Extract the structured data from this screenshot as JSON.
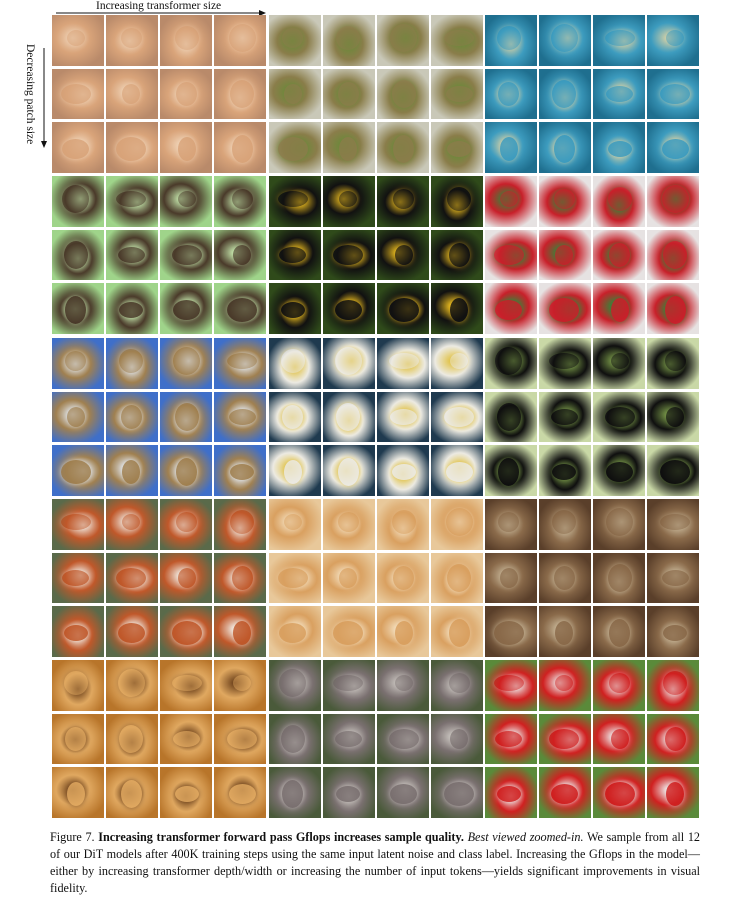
{
  "figure": {
    "top_axis_label": "Increasing transformer size",
    "side_axis_label": "Decreasing patch size",
    "caption": {
      "figure_label": "Figure 7.",
      "title": "Increasing transformer forward pass Gflops increases sample quality.",
      "emphasis": "Best viewed zoomed-in.",
      "body": "We sample from all 12 of our DiT models after 400K training steps using the same input latent noise and class label. Increasing the Gflops in the model—either by increasing transformer depth/width or increasing the number of input tokens—yields significant improvements in visual fidelity."
    },
    "panels": [
      {
        "subject": "dog",
        "colors": {
          "bg": "#b98a6a",
          "fg": "#d9a47a",
          "accent": "#f0d4b8"
        }
      },
      {
        "subject": "frog",
        "colors": {
          "bg": "#c9c8b8",
          "fg": "#8a7d4a",
          "accent": "#6b8a3a"
        }
      },
      {
        "subject": "pufferfish",
        "colors": {
          "bg": "#1f6f8f",
          "fg": "#3d9cbf",
          "accent": "#d9d2a6"
        }
      },
      {
        "subject": "insect",
        "colors": {
          "bg": "#9fd48a",
          "fg": "#4a3a2a",
          "accent": "#c9ecb0"
        }
      },
      {
        "subject": "toucan",
        "colors": {
          "bg": "#2f4a1a",
          "fg": "#111111",
          "accent": "#f0c020"
        }
      },
      {
        "subject": "parrot",
        "colors": {
          "bg": "#e6e2e2",
          "fg": "#c8202a",
          "accent": "#2f8a3a"
        }
      },
      {
        "subject": "tent",
        "colors": {
          "bg": "#3f6fc9",
          "fg": "#a08050",
          "accent": "#e6eef8"
        }
      },
      {
        "subject": "cockatoo",
        "colors": {
          "bg": "#1f3a4f",
          "fg": "#eceae2",
          "accent": "#e0c040"
        }
      },
      {
        "subject": "black dog",
        "colors": {
          "bg": "#c9d8a6",
          "fg": "#0f0f0f",
          "accent": "#7a9a4a"
        }
      },
      {
        "subject": "red panda",
        "colors": {
          "bg": "#5a6a4a",
          "fg": "#c0582a",
          "accent": "#f2efe8"
        }
      },
      {
        "subject": "pomeranian",
        "colors": {
          "bg": "#e8c89a",
          "fg": "#d9a060",
          "accent": "#f4e0c0"
        }
      },
      {
        "subject": "bookshelf",
        "colors": {
          "bg": "#5a3f2a",
          "fg": "#8a6a4a",
          "accent": "#c9b89a"
        }
      },
      {
        "subject": "cliff dwelling",
        "colors": {
          "bg": "#b8752a",
          "fg": "#e0a860",
          "accent": "#6a3f1a"
        }
      },
      {
        "subject": "koala",
        "colors": {
          "bg": "#4a5a3a",
          "fg": "#7a7070",
          "accent": "#c9c4bf"
        }
      },
      {
        "subject": "fire truck",
        "colors": {
          "bg": "#5a8a3a",
          "fg": "#d02020",
          "accent": "#eeeeee"
        }
      }
    ]
  }
}
